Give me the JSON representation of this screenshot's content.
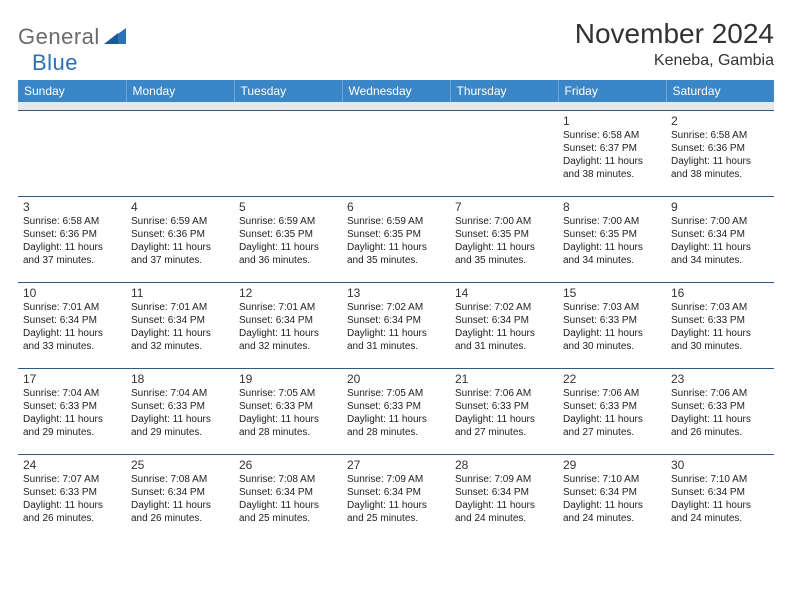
{
  "brand": {
    "general": "General",
    "blue": "Blue"
  },
  "title": "November 2024",
  "location": "Keneba, Gambia",
  "colors": {
    "header_bg": "#3b86c6",
    "header_text": "#ffffff",
    "row_border": "#2f5a84",
    "spacer_bg": "#e7e8ea",
    "text": "#222222",
    "logo_gray": "#6a6a6a",
    "logo_blue": "#2a72b5"
  },
  "day_headers": [
    "Sunday",
    "Monday",
    "Tuesday",
    "Wednesday",
    "Thursday",
    "Friday",
    "Saturday"
  ],
  "weeks": [
    [
      {
        "num": "",
        "sunrise": "",
        "sunset": "",
        "day1": "",
        "day2": ""
      },
      {
        "num": "",
        "sunrise": "",
        "sunset": "",
        "day1": "",
        "day2": ""
      },
      {
        "num": "",
        "sunrise": "",
        "sunset": "",
        "day1": "",
        "day2": ""
      },
      {
        "num": "",
        "sunrise": "",
        "sunset": "",
        "day1": "",
        "day2": ""
      },
      {
        "num": "",
        "sunrise": "",
        "sunset": "",
        "day1": "",
        "day2": ""
      },
      {
        "num": "1",
        "sunrise": "Sunrise: 6:58 AM",
        "sunset": "Sunset: 6:37 PM",
        "day1": "Daylight: 11 hours",
        "day2": "and 38 minutes."
      },
      {
        "num": "2",
        "sunrise": "Sunrise: 6:58 AM",
        "sunset": "Sunset: 6:36 PM",
        "day1": "Daylight: 11 hours",
        "day2": "and 38 minutes."
      }
    ],
    [
      {
        "num": "3",
        "sunrise": "Sunrise: 6:58 AM",
        "sunset": "Sunset: 6:36 PM",
        "day1": "Daylight: 11 hours",
        "day2": "and 37 minutes."
      },
      {
        "num": "4",
        "sunrise": "Sunrise: 6:59 AM",
        "sunset": "Sunset: 6:36 PM",
        "day1": "Daylight: 11 hours",
        "day2": "and 37 minutes."
      },
      {
        "num": "5",
        "sunrise": "Sunrise: 6:59 AM",
        "sunset": "Sunset: 6:35 PM",
        "day1": "Daylight: 11 hours",
        "day2": "and 36 minutes."
      },
      {
        "num": "6",
        "sunrise": "Sunrise: 6:59 AM",
        "sunset": "Sunset: 6:35 PM",
        "day1": "Daylight: 11 hours",
        "day2": "and 35 minutes."
      },
      {
        "num": "7",
        "sunrise": "Sunrise: 7:00 AM",
        "sunset": "Sunset: 6:35 PM",
        "day1": "Daylight: 11 hours",
        "day2": "and 35 minutes."
      },
      {
        "num": "8",
        "sunrise": "Sunrise: 7:00 AM",
        "sunset": "Sunset: 6:35 PM",
        "day1": "Daylight: 11 hours",
        "day2": "and 34 minutes."
      },
      {
        "num": "9",
        "sunrise": "Sunrise: 7:00 AM",
        "sunset": "Sunset: 6:34 PM",
        "day1": "Daylight: 11 hours",
        "day2": "and 34 minutes."
      }
    ],
    [
      {
        "num": "10",
        "sunrise": "Sunrise: 7:01 AM",
        "sunset": "Sunset: 6:34 PM",
        "day1": "Daylight: 11 hours",
        "day2": "and 33 minutes."
      },
      {
        "num": "11",
        "sunrise": "Sunrise: 7:01 AM",
        "sunset": "Sunset: 6:34 PM",
        "day1": "Daylight: 11 hours",
        "day2": "and 32 minutes."
      },
      {
        "num": "12",
        "sunrise": "Sunrise: 7:01 AM",
        "sunset": "Sunset: 6:34 PM",
        "day1": "Daylight: 11 hours",
        "day2": "and 32 minutes."
      },
      {
        "num": "13",
        "sunrise": "Sunrise: 7:02 AM",
        "sunset": "Sunset: 6:34 PM",
        "day1": "Daylight: 11 hours",
        "day2": "and 31 minutes."
      },
      {
        "num": "14",
        "sunrise": "Sunrise: 7:02 AM",
        "sunset": "Sunset: 6:34 PM",
        "day1": "Daylight: 11 hours",
        "day2": "and 31 minutes."
      },
      {
        "num": "15",
        "sunrise": "Sunrise: 7:03 AM",
        "sunset": "Sunset: 6:33 PM",
        "day1": "Daylight: 11 hours",
        "day2": "and 30 minutes."
      },
      {
        "num": "16",
        "sunrise": "Sunrise: 7:03 AM",
        "sunset": "Sunset: 6:33 PM",
        "day1": "Daylight: 11 hours",
        "day2": "and 30 minutes."
      }
    ],
    [
      {
        "num": "17",
        "sunrise": "Sunrise: 7:04 AM",
        "sunset": "Sunset: 6:33 PM",
        "day1": "Daylight: 11 hours",
        "day2": "and 29 minutes."
      },
      {
        "num": "18",
        "sunrise": "Sunrise: 7:04 AM",
        "sunset": "Sunset: 6:33 PM",
        "day1": "Daylight: 11 hours",
        "day2": "and 29 minutes."
      },
      {
        "num": "19",
        "sunrise": "Sunrise: 7:05 AM",
        "sunset": "Sunset: 6:33 PM",
        "day1": "Daylight: 11 hours",
        "day2": "and 28 minutes."
      },
      {
        "num": "20",
        "sunrise": "Sunrise: 7:05 AM",
        "sunset": "Sunset: 6:33 PM",
        "day1": "Daylight: 11 hours",
        "day2": "and 28 minutes."
      },
      {
        "num": "21",
        "sunrise": "Sunrise: 7:06 AM",
        "sunset": "Sunset: 6:33 PM",
        "day1": "Daylight: 11 hours",
        "day2": "and 27 minutes."
      },
      {
        "num": "22",
        "sunrise": "Sunrise: 7:06 AM",
        "sunset": "Sunset: 6:33 PM",
        "day1": "Daylight: 11 hours",
        "day2": "and 27 minutes."
      },
      {
        "num": "23",
        "sunrise": "Sunrise: 7:06 AM",
        "sunset": "Sunset: 6:33 PM",
        "day1": "Daylight: 11 hours",
        "day2": "and 26 minutes."
      }
    ],
    [
      {
        "num": "24",
        "sunrise": "Sunrise: 7:07 AM",
        "sunset": "Sunset: 6:33 PM",
        "day1": "Daylight: 11 hours",
        "day2": "and 26 minutes."
      },
      {
        "num": "25",
        "sunrise": "Sunrise: 7:08 AM",
        "sunset": "Sunset: 6:34 PM",
        "day1": "Daylight: 11 hours",
        "day2": "and 26 minutes."
      },
      {
        "num": "26",
        "sunrise": "Sunrise: 7:08 AM",
        "sunset": "Sunset: 6:34 PM",
        "day1": "Daylight: 11 hours",
        "day2": "and 25 minutes."
      },
      {
        "num": "27",
        "sunrise": "Sunrise: 7:09 AM",
        "sunset": "Sunset: 6:34 PM",
        "day1": "Daylight: 11 hours",
        "day2": "and 25 minutes."
      },
      {
        "num": "28",
        "sunrise": "Sunrise: 7:09 AM",
        "sunset": "Sunset: 6:34 PM",
        "day1": "Daylight: 11 hours",
        "day2": "and 24 minutes."
      },
      {
        "num": "29",
        "sunrise": "Sunrise: 7:10 AM",
        "sunset": "Sunset: 6:34 PM",
        "day1": "Daylight: 11 hours",
        "day2": "and 24 minutes."
      },
      {
        "num": "30",
        "sunrise": "Sunrise: 7:10 AM",
        "sunset": "Sunset: 6:34 PM",
        "day1": "Daylight: 11 hours",
        "day2": "and 24 minutes."
      }
    ]
  ]
}
